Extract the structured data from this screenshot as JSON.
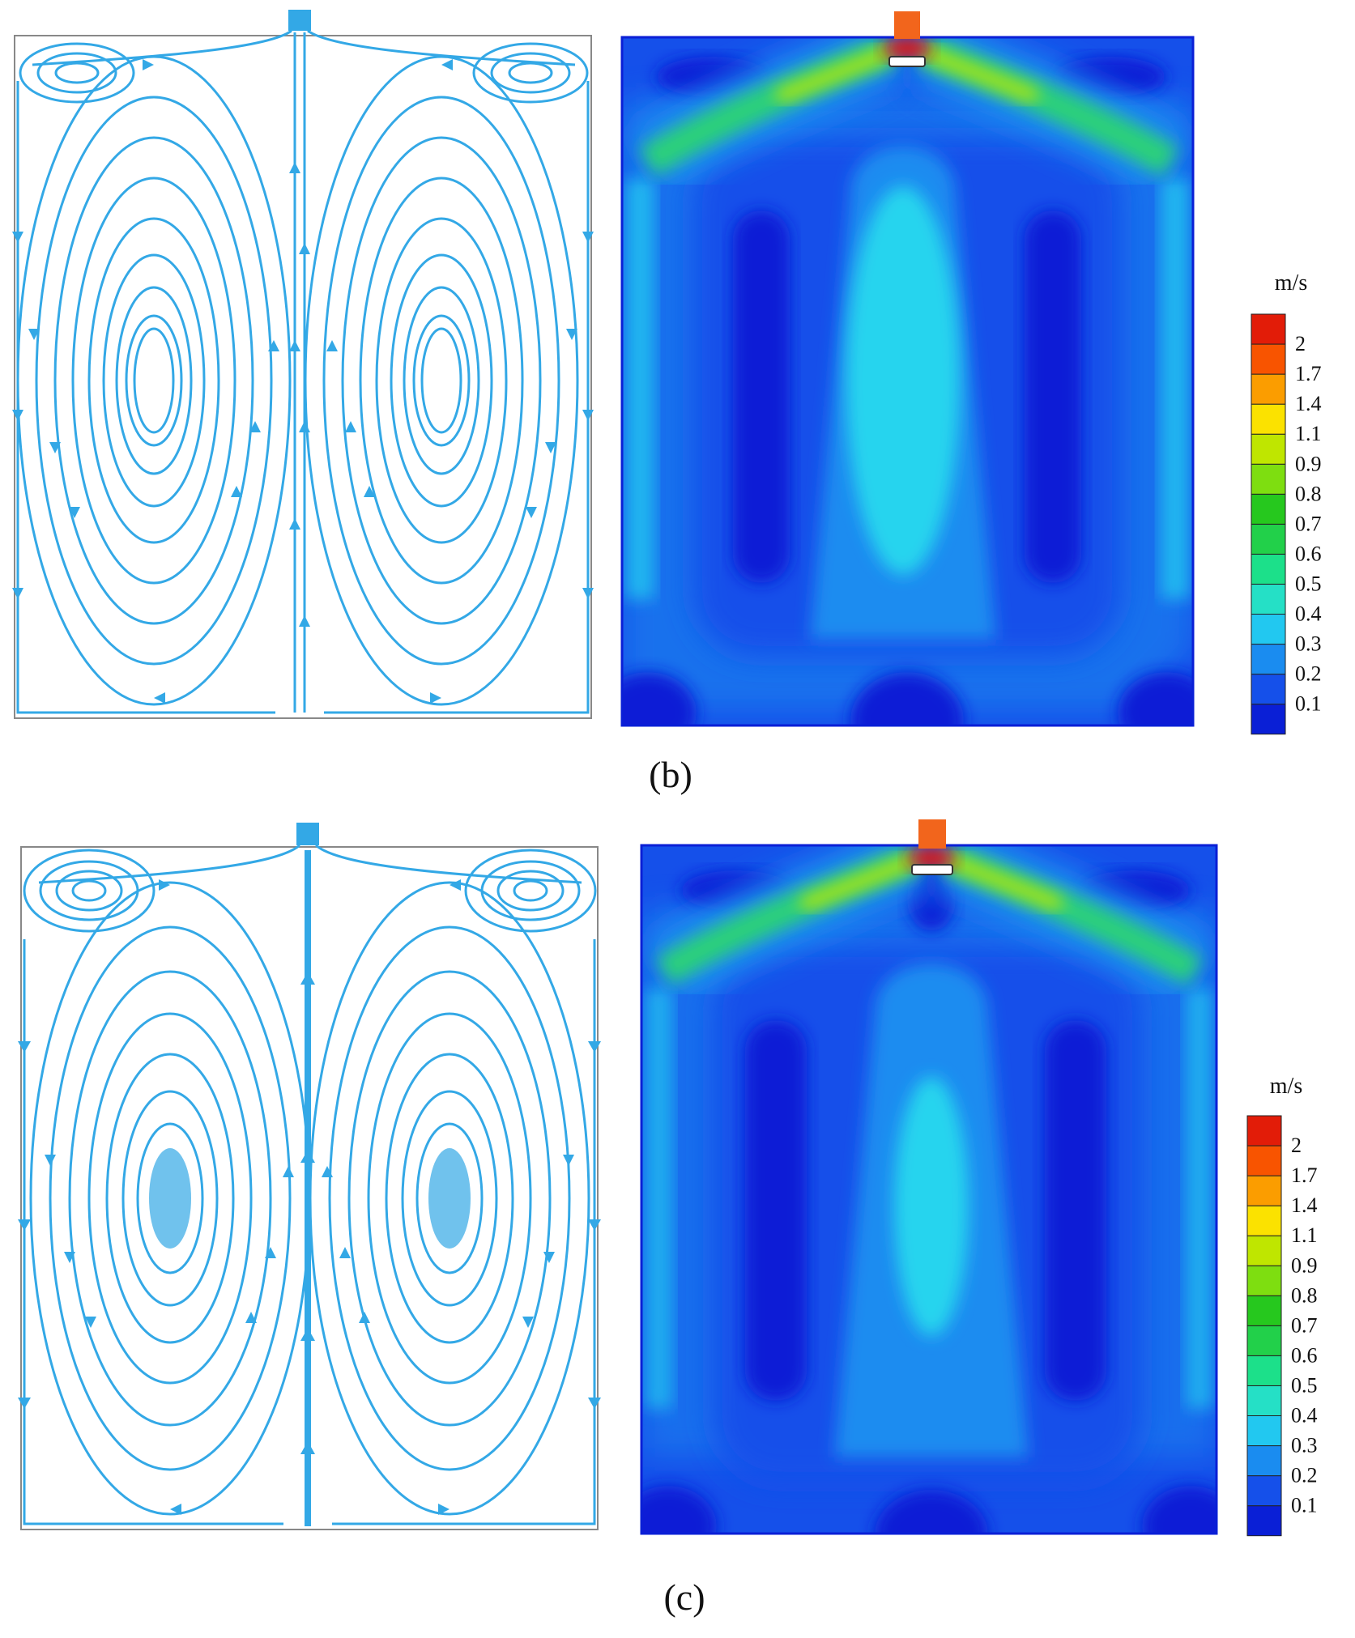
{
  "panels": [
    {
      "id": "b",
      "caption": "(b)"
    },
    {
      "id": "c",
      "caption": "(c)"
    }
  ],
  "legend": {
    "unit": "m/s",
    "levels": [
      "0.1",
      "0.2",
      "0.3",
      "0.4",
      "0.5",
      "0.6",
      "0.7",
      "0.8",
      "0.9",
      "1.1",
      "1.4",
      "1.7",
      "2"
    ],
    "colors": [
      "#0a1fd6",
      "#1550ea",
      "#1a8cf0",
      "#22c8f0",
      "#25e0c6",
      "#1ce08a",
      "#22d04a",
      "#26c81e",
      "#7ede10",
      "#bfe600",
      "#fbe200",
      "#fb9d00",
      "#f85400",
      "#e21c08"
    ]
  },
  "colors": {
    "streamline": "#33a8e6",
    "field_low": "#0a2ad8",
    "field_mid": "#1a8cf0",
    "field_jet": "#2bd07a",
    "inlet": "#f2651c"
  }
}
